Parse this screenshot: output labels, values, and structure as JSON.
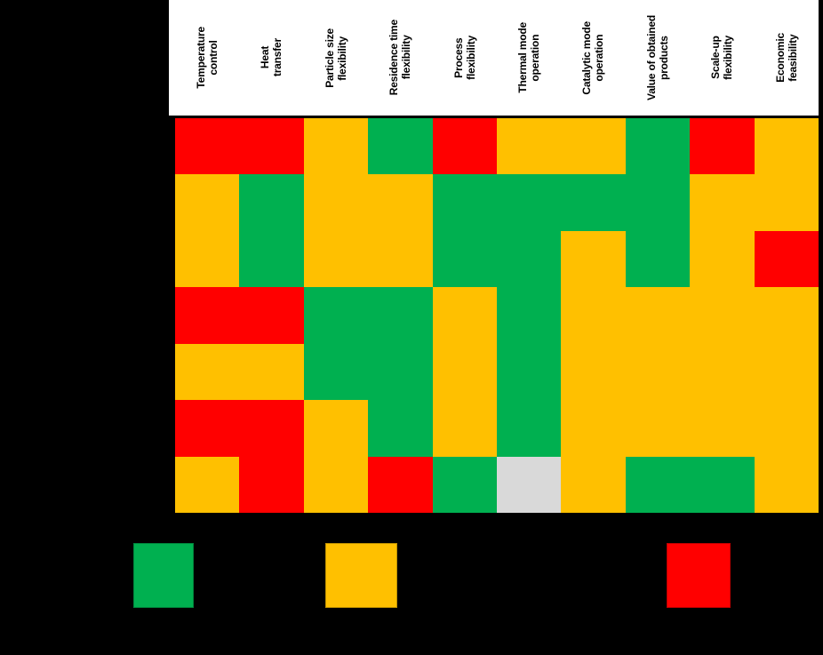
{
  "figure": {
    "background_color": "#000000",
    "header_background": "#FFFFFF"
  },
  "chart_data": {
    "type": "heatmap",
    "title": "",
    "columns": [
      "Temperature\ncontrol",
      "Heat\ntransfer",
      "Particle size\nflexibility",
      "Residence time\nflexibility",
      "Process\nflexibility",
      "Thermal mode\noperation",
      "Catalytic mode\noperation",
      "Value of obtained\nproducts",
      "Scale-up\nflexibility",
      "Economic\nfeasibility"
    ],
    "row_count": 7,
    "row_labels_visible": false,
    "cells": [
      [
        "red",
        "red",
        "yellow",
        "green",
        "red",
        "yellow",
        "yellow",
        "green",
        "red",
        "yellow"
      ],
      [
        "yellow",
        "green",
        "yellow",
        "yellow",
        "green",
        "green",
        "green",
        "green",
        "yellow",
        "yellow"
      ],
      [
        "yellow",
        "green",
        "yellow",
        "yellow",
        "green",
        "green",
        "yellow",
        "green",
        "yellow",
        "red"
      ],
      [
        "red",
        "red",
        "green",
        "green",
        "yellow",
        "green",
        "yellow",
        "yellow",
        "yellow",
        "yellow"
      ],
      [
        "yellow",
        "yellow",
        "green",
        "green",
        "yellow",
        "green",
        "yellow",
        "yellow",
        "yellow",
        "yellow"
      ],
      [
        "red",
        "red",
        "yellow",
        "green",
        "yellow",
        "green",
        "yellow",
        "yellow",
        "yellow",
        "yellow"
      ],
      [
        "yellow",
        "red",
        "yellow",
        "red",
        "green",
        "gray",
        "yellow",
        "green",
        "green",
        "yellow"
      ]
    ],
    "color_map": {
      "green": "#00B050",
      "yellow": "#FFC000",
      "red": "#FF0000",
      "gray": "#D9D9D9"
    },
    "legend": [
      {
        "id": "green",
        "color": "#00B050"
      },
      {
        "id": "yellow",
        "color": "#FFC000"
      },
      {
        "id": "red",
        "color": "#FF0000"
      }
    ],
    "legend_position": "bottom",
    "grid": false
  }
}
